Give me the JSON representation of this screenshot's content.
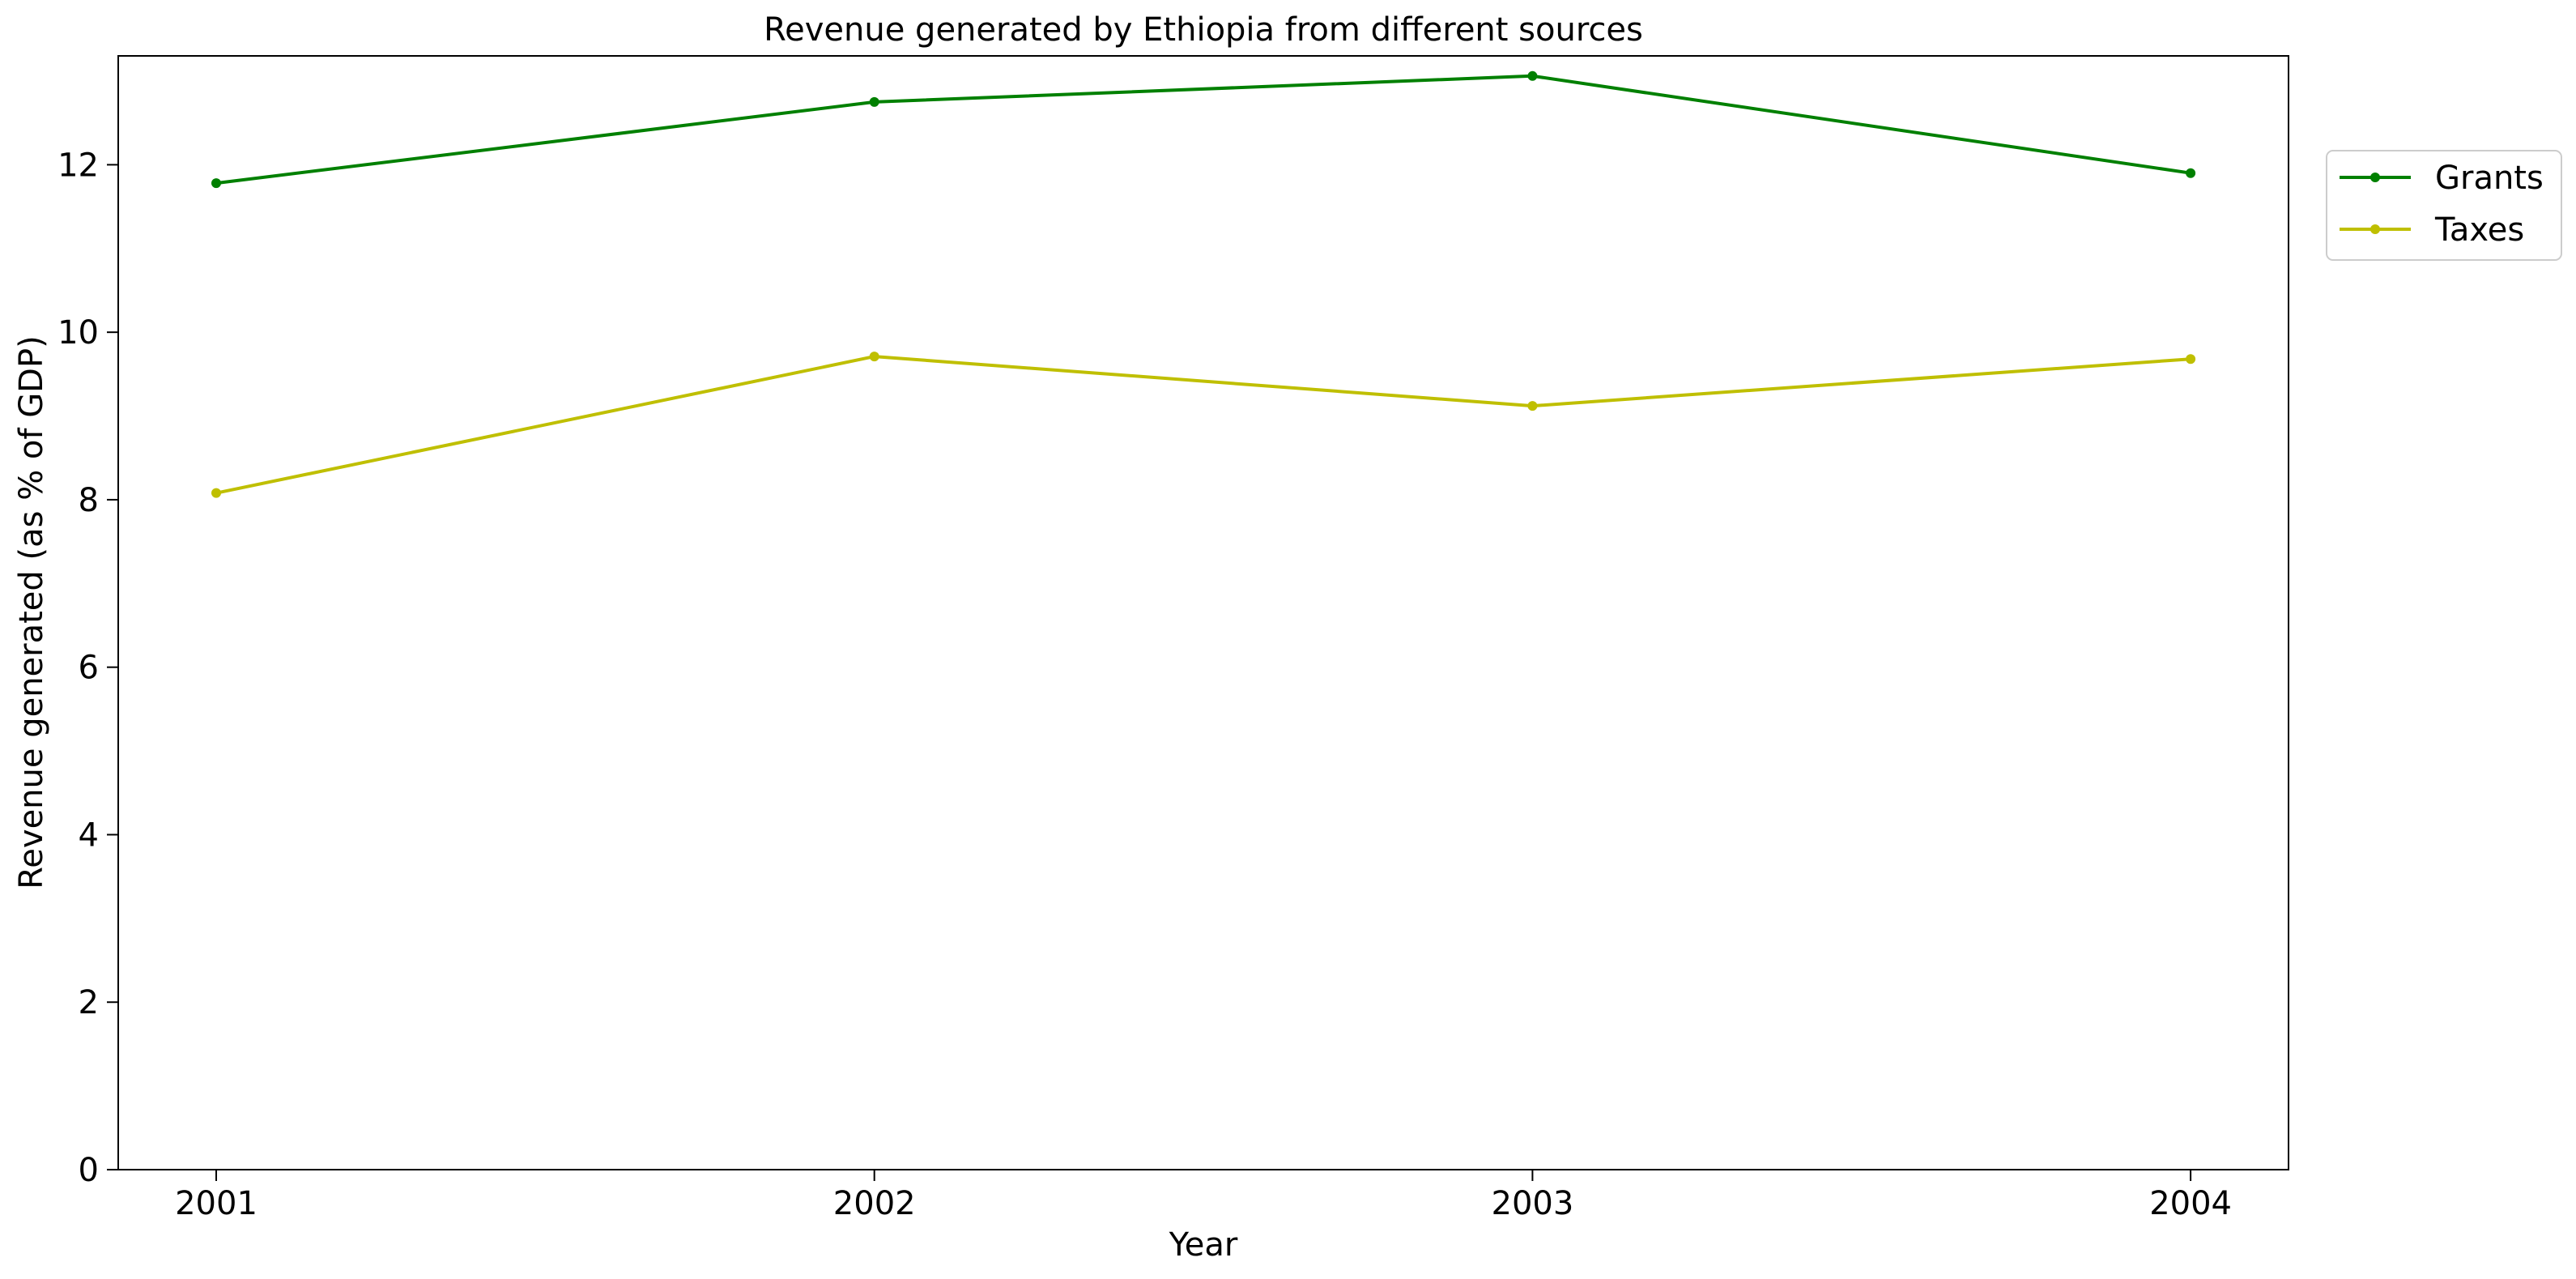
{
  "chart_data": {
    "type": "line",
    "title": "Revenue generated by Ethiopia from different sources",
    "xlabel": "Year",
    "ylabel": "Revenue generated (as % of GDP)",
    "x": [
      "2001",
      "2002",
      "2003",
      "2004"
    ],
    "ylim": [
      0,
      13.3
    ],
    "yticks": [
      0,
      2,
      4,
      6,
      8,
      10,
      12
    ],
    "grid": false,
    "legend_position": "upper-right-outside",
    "series": [
      {
        "name": "Grants",
        "color": "#008000",
        "values": [
          11.78,
          12.75,
          13.06,
          11.9
        ]
      },
      {
        "name": "Taxes",
        "color": "#bfbf00",
        "values": [
          8.08,
          9.71,
          9.12,
          9.68
        ]
      }
    ]
  }
}
